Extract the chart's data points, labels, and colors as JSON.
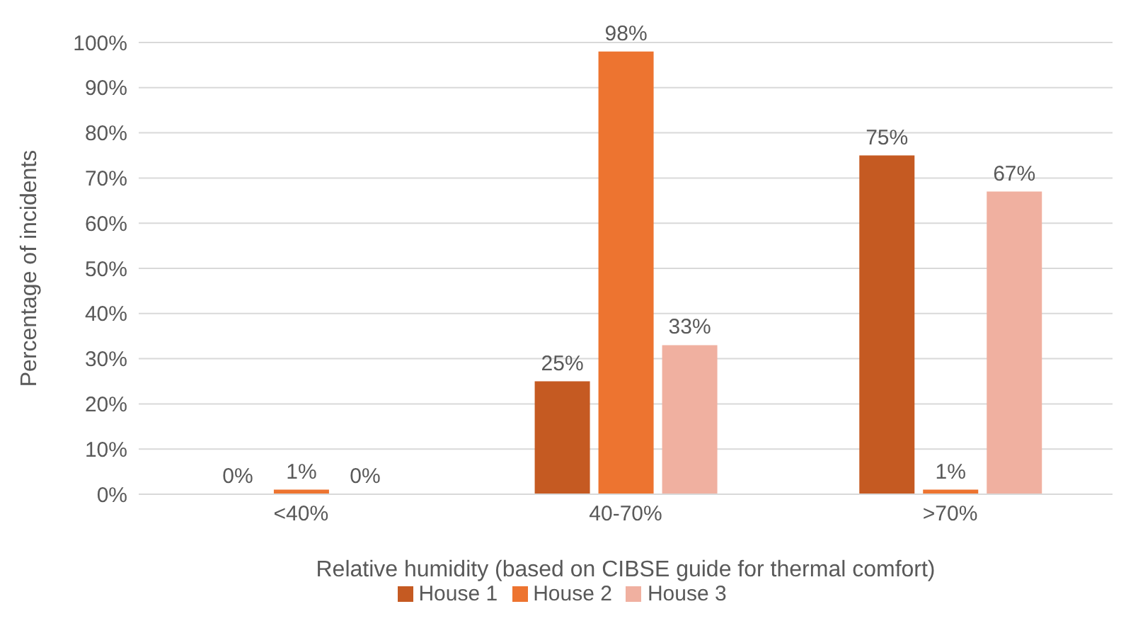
{
  "chart_data": {
    "type": "bar",
    "xlabel": "Relative humidity  (based on CIBSE guide for thermal comfort)",
    "ylabel": "Percentage of incidents",
    "categories": [
      "<40%",
      "40-70%",
      ">70%"
    ],
    "series": [
      {
        "name": "House 1",
        "color": "#c55a22",
        "values": [
          0,
          25,
          75
        ],
        "value_labels": [
          "0%",
          "25%",
          "75%"
        ]
      },
      {
        "name": "House 2",
        "color": "#ed7430",
        "values": [
          1,
          98,
          1
        ],
        "value_labels": [
          "1%",
          "98%",
          "1%"
        ]
      },
      {
        "name": "House 3",
        "color": "#f0b0a0",
        "values": [
          0,
          33,
          67
        ],
        "value_labels": [
          "0%",
          "33%",
          "67%"
        ]
      }
    ],
    "ylim": [
      0,
      100
    ],
    "yticks": [
      {
        "value": 0,
        "label": "0%"
      },
      {
        "value": 10,
        "label": "10%"
      },
      {
        "value": 20,
        "label": "20%"
      },
      {
        "value": 30,
        "label": "30%"
      },
      {
        "value": 40,
        "label": "40%"
      },
      {
        "value": 50,
        "label": "50%"
      },
      {
        "value": 60,
        "label": "60%"
      },
      {
        "value": 70,
        "label": "70%"
      },
      {
        "value": 80,
        "label": "80%"
      },
      {
        "value": 90,
        "label": "90%"
      },
      {
        "value": 100,
        "label": "100%"
      }
    ],
    "grid": "y",
    "legend": "bottom"
  }
}
